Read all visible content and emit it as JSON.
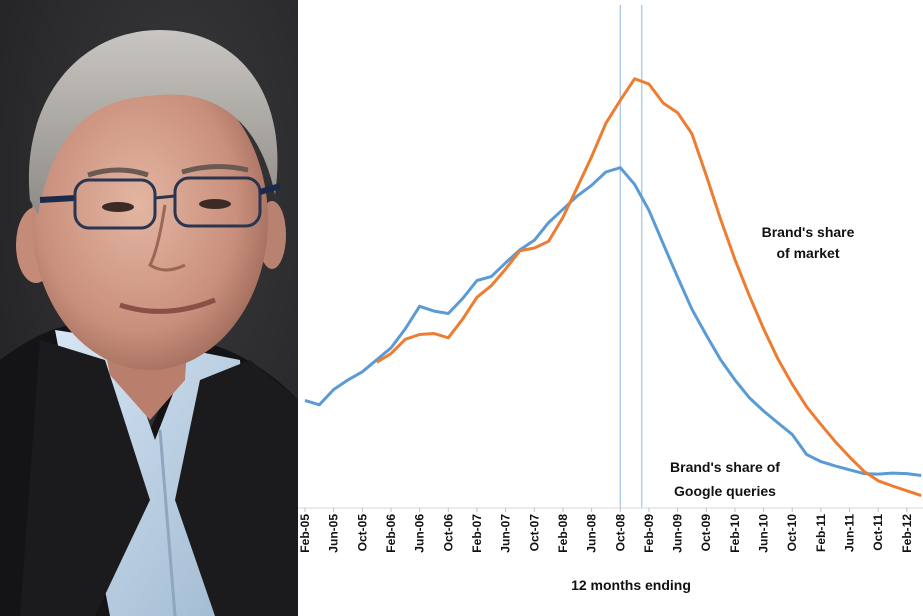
{
  "portrait": {
    "description_icon": "person-photo"
  },
  "chart_data": {
    "type": "line",
    "title": "",
    "xlabel": "12 months ending",
    "ylabel": "",
    "grid": false,
    "legend": "none",
    "x_ticks": [
      "Feb-05",
      "Jun-05",
      "Oct-05",
      "Feb-06",
      "Jun-06",
      "Oct-06",
      "Feb-07",
      "Jun-07",
      "Oct-07",
      "Feb-08",
      "Jun-08",
      "Oct-08",
      "Feb-09",
      "Jun-09",
      "Oct-09",
      "Feb-10",
      "Jun-10",
      "Oct-10",
      "Feb-11",
      "Jun-11",
      "Oct-11",
      "Feb-12"
    ],
    "vertical_markers": [
      "Oct-08",
      "Jan-09"
    ],
    "ylim": [
      0,
      100
    ],
    "series": [
      {
        "name": "Brand's share of Google queries",
        "color": "#5b9bd5",
        "points": [
          [
            "Feb-05",
            22.5
          ],
          [
            "Apr-05",
            21.6
          ],
          [
            "Jun-05",
            24.8
          ],
          [
            "Aug-05",
            26.8
          ],
          [
            "Oct-05",
            28.5
          ],
          [
            "Dec-05",
            31.0
          ],
          [
            "Feb-06",
            33.5
          ],
          [
            "Apr-06",
            37.5
          ],
          [
            "Jun-06",
            42.2
          ],
          [
            "Aug-06",
            41.2
          ],
          [
            "Oct-06",
            40.7
          ],
          [
            "Dec-06",
            43.8
          ],
          [
            "Feb-07",
            47.6
          ],
          [
            "Apr-07",
            48.4
          ],
          [
            "Jun-07",
            51.3
          ],
          [
            "Aug-07",
            54.0
          ],
          [
            "Oct-07",
            56.0
          ],
          [
            "Dec-07",
            59.7
          ],
          [
            "Feb-08",
            62.5
          ],
          [
            "Apr-08",
            65.3
          ],
          [
            "Jun-08",
            67.5
          ],
          [
            "Aug-08",
            70.3
          ],
          [
            "Oct-08",
            71.2
          ],
          [
            "Dec-08",
            67.7
          ],
          [
            "Feb-09",
            62.3
          ],
          [
            "Apr-09",
            55.2
          ],
          [
            "Jun-09",
            48.3
          ],
          [
            "Aug-09",
            41.6
          ],
          [
            "Oct-09",
            36.2
          ],
          [
            "Dec-09",
            31.0
          ],
          [
            "Feb-10",
            26.8
          ],
          [
            "Apr-10",
            23.1
          ],
          [
            "Jun-10",
            20.3
          ],
          [
            "Aug-10",
            17.8
          ],
          [
            "Oct-10",
            15.4
          ],
          [
            "Dec-10",
            11.2
          ],
          [
            "Feb-11",
            9.7
          ],
          [
            "Apr-11",
            8.8
          ],
          [
            "Jun-11",
            8.0
          ],
          [
            "Aug-11",
            7.2
          ],
          [
            "Oct-11",
            7.1
          ],
          [
            "Dec-11",
            7.3
          ],
          [
            "Feb-12",
            7.2
          ],
          [
            "Apr-12",
            6.8
          ]
        ]
      },
      {
        "name": "Brand's share of market",
        "color": "#ed7d31",
        "points": [
          [
            "Dec-05",
            30.5
          ],
          [
            "Feb-06",
            32.3
          ],
          [
            "Apr-06",
            35.3
          ],
          [
            "Jun-06",
            36.3
          ],
          [
            "Aug-06",
            36.5
          ],
          [
            "Oct-06",
            35.6
          ],
          [
            "Dec-06",
            39.5
          ],
          [
            "Feb-07",
            44.1
          ],
          [
            "Apr-07",
            46.5
          ],
          [
            "Jun-07",
            50.0
          ],
          [
            "Aug-07",
            53.8
          ],
          [
            "Oct-07",
            54.4
          ],
          [
            "Dec-07",
            55.8
          ],
          [
            "Feb-08",
            60.8
          ],
          [
            "Apr-08",
            67.1
          ],
          [
            "Jun-08",
            73.5
          ],
          [
            "Aug-08",
            80.5
          ],
          [
            "Oct-08",
            85.3
          ],
          [
            "Dec-08",
            89.8
          ],
          [
            "Feb-09",
            88.7
          ],
          [
            "Apr-09",
            84.7
          ],
          [
            "Jun-09",
            82.7
          ],
          [
            "Aug-09",
            78.3
          ],
          [
            "Oct-09",
            69.6
          ],
          [
            "Dec-09",
            60.4
          ],
          [
            "Feb-10",
            52.0
          ],
          [
            "Apr-10",
            44.5
          ],
          [
            "Jun-10",
            37.5
          ],
          [
            "Aug-10",
            31.2
          ],
          [
            "Oct-10",
            25.9
          ],
          [
            "Dec-10",
            21.2
          ],
          [
            "Feb-11",
            17.5
          ],
          [
            "Apr-11",
            13.9
          ],
          [
            "Jun-11",
            10.7
          ],
          [
            "Aug-11",
            7.7
          ],
          [
            "Oct-11",
            5.7
          ],
          [
            "Dec-11",
            4.6
          ],
          [
            "Feb-12",
            3.6
          ],
          [
            "Apr-12",
            2.6
          ]
        ]
      }
    ],
    "annotations": {
      "market": [
        "Brand's share",
        "of market"
      ],
      "google": [
        "Brand's share of",
        "Google queries"
      ]
    }
  }
}
